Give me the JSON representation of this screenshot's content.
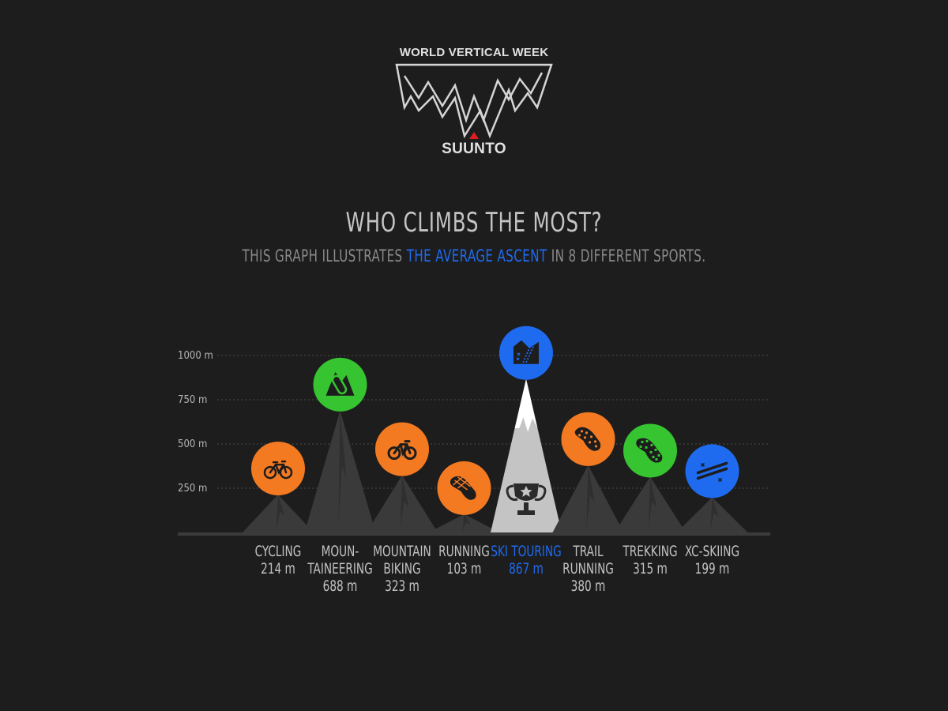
{
  "logo": {
    "top_text": "WORLD VERTICAL WEEK",
    "brand": "SUUNTO"
  },
  "heading": {
    "title": "WHO CLIMBS THE MOST?",
    "subtitle_pre": "THIS GRAPH ILLUSTRATES ",
    "subtitle_highlight": "THE AVERAGE ASCENT",
    "subtitle_post": " IN 8 DIFFERENT SPORTS."
  },
  "colors": {
    "background": "#1d1d1e",
    "orange": "#f47a22",
    "green": "#36c430",
    "blue": "#1f6bf0",
    "mountain": "#3a3a3a",
    "highlight_mountain": "#c4c4c4"
  },
  "chart_data": {
    "type": "bar",
    "style": "mountain peaks with sport icons",
    "y_unit": "m",
    "ylim": [
      0,
      1000
    ],
    "y_ticks": [
      250,
      500,
      750,
      1000
    ],
    "y_tick_labels": [
      "250 m",
      "500 m",
      "750 m",
      "1000 m"
    ],
    "grid": true,
    "categories": [
      {
        "lines": [
          "CYCLING"
        ],
        "value": 214,
        "value_label": "214 m",
        "icon": "bicycle-icon",
        "color": "orange",
        "highlight": false
      },
      {
        "lines": [
          "MOUN-",
          "TAINEERING"
        ],
        "value": 688,
        "value_label": "688 m",
        "icon": "carabiner-icon",
        "color": "green",
        "highlight": false
      },
      {
        "lines": [
          "MOUNTAIN",
          "BIKING"
        ],
        "value": 323,
        "value_label": "323 m",
        "icon": "mountain-bike-icon",
        "color": "orange",
        "highlight": false
      },
      {
        "lines": [
          "RUNNING"
        ],
        "value": 103,
        "value_label": "103 m",
        "icon": "running-shoe-icon",
        "color": "orange",
        "highlight": false
      },
      {
        "lines": [
          "SKI TOURING"
        ],
        "value": 867,
        "value_label": "867 m",
        "icon": "ski-touring-icon",
        "color": "blue",
        "highlight": true
      },
      {
        "lines": [
          "TRAIL",
          "RUNNING"
        ],
        "value": 380,
        "value_label": "380 m",
        "icon": "trail-shoe-icon",
        "color": "orange",
        "highlight": false
      },
      {
        "lines": [
          "TREKKING"
        ],
        "value": 315,
        "value_label": "315 m",
        "icon": "boot-sole-icon",
        "color": "green",
        "highlight": false
      },
      {
        "lines": [
          "XC-SKIING"
        ],
        "value": 199,
        "value_label": "199 m",
        "icon": "xc-ski-icon",
        "color": "blue",
        "highlight": false
      }
    ]
  }
}
